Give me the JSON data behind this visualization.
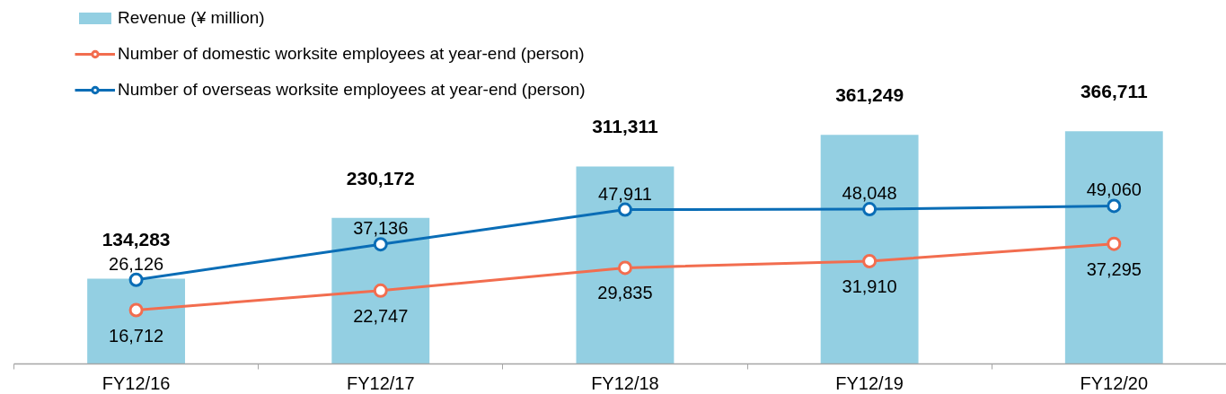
{
  "chart_data": {
    "type": "bar",
    "categories": [
      "FY12/16",
      "FY12/17",
      "FY12/18",
      "FY12/19",
      "FY12/20"
    ],
    "series": [
      {
        "name": "Revenue (¥ million)",
        "color": "#93cfe2",
        "values": [
          134283,
          230172,
          311311,
          361249,
          366711
        ],
        "value_labels": [
          "134,283",
          "230,172",
          "311,311",
          "361,249",
          "366,711"
        ]
      },
      {
        "name": "Number of domestic worksite employees at year-end (person)",
        "type": "line",
        "axis": "y2",
        "color": "#f26d4f",
        "values": [
          16712,
          22747,
          29835,
          31910,
          37295
        ],
        "value_labels": [
          "16,712",
          "22,747",
          "29,835",
          "31,910",
          "37,295"
        ]
      },
      {
        "name": "Number of overseas worksite employees at year-end (person)",
        "type": "line",
        "axis": "y2",
        "color": "#0a6db6",
        "values": [
          26126,
          37136,
          47911,
          48048,
          49060
        ],
        "value_labels": [
          "26,126",
          "37,136",
          "47,911",
          "48,048",
          "49,060"
        ]
      }
    ],
    "tick_labels": "x",
    "legend": "top left",
    "grid": false,
    "marker": "circle",
    "line_style": "solid"
  }
}
